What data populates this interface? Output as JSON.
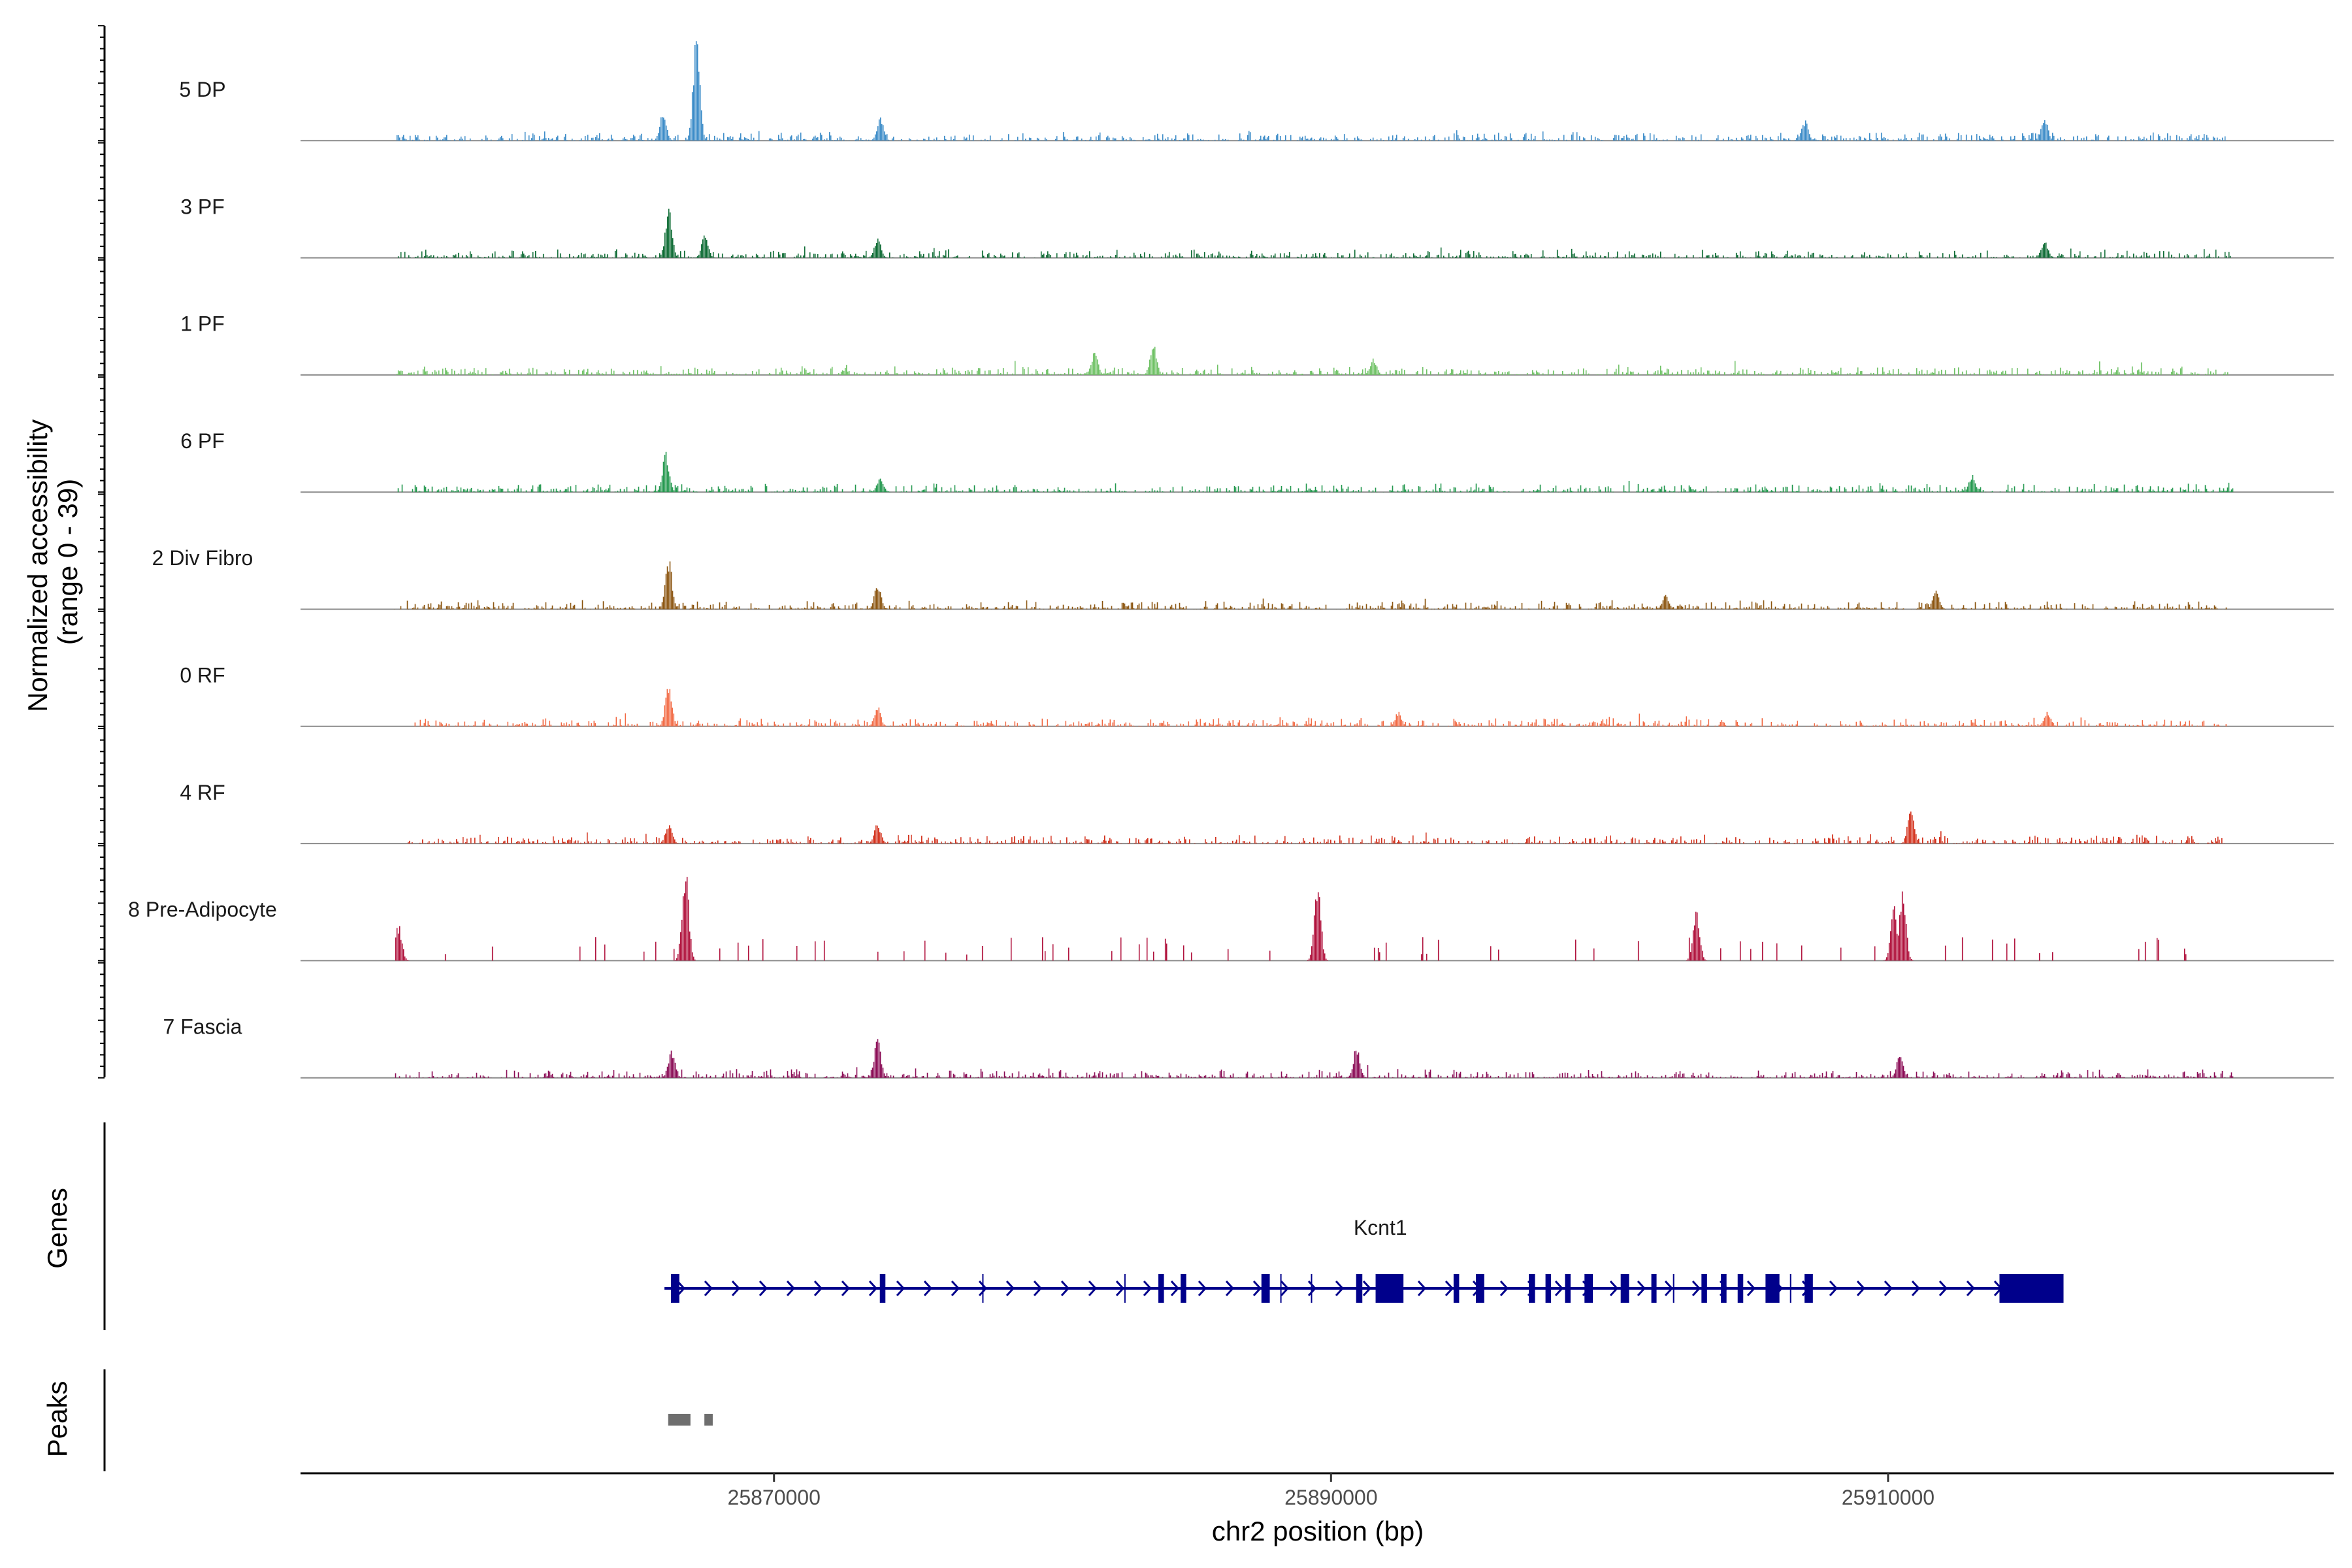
{
  "chart_data": {
    "type": "coverage",
    "y_axis_label_line1": "Normalized accessibility",
    "y_axis_label_line2": "(range 0 - 39)",
    "y_range": [
      0,
      39
    ],
    "x_axis_label": "chr2 position (bp)",
    "x_range": [
      25853000,
      25926000
    ],
    "x_ticks": [
      25870000,
      25890000,
      25910000
    ],
    "x_tick_labels": [
      "25870000",
      "25890000",
      "25910000"
    ],
    "tracks": [
      {
        "name": "5 DP",
        "color": "#3c8cc8",
        "start": 25856400,
        "end": 25922100,
        "peaks": [
          [
            25866000,
            10
          ],
          [
            25867200,
            38
          ],
          [
            25873800,
            8
          ],
          [
            25907000,
            7
          ],
          [
            25915600,
            8
          ]
        ]
      },
      {
        "name": "3 PF",
        "color": "#0b6a32",
        "start": 25856400,
        "end": 25922300,
        "peaks": [
          [
            25866200,
            18
          ],
          [
            25867500,
            8
          ],
          [
            25873700,
            7
          ],
          [
            25915600,
            6
          ]
        ]
      },
      {
        "name": "1 PF",
        "color": "#6ec164",
        "start": 25856400,
        "end": 25922300,
        "peaks": [
          [
            25881500,
            8
          ],
          [
            25883600,
            11
          ],
          [
            25891500,
            6
          ]
        ]
      },
      {
        "name": "6 PF",
        "color": "#23984e",
        "start": 25856300,
        "end": 25922400,
        "peaks": [
          [
            25866100,
            14
          ],
          [
            25873800,
            5
          ],
          [
            25913000,
            6
          ]
        ]
      },
      {
        "name": "2 Div Fibro",
        "color": "#8b5510",
        "start": 25856300,
        "end": 25922200,
        "peaks": [
          [
            25866200,
            18
          ],
          [
            25873700,
            9
          ],
          [
            25902000,
            5
          ],
          [
            25911700,
            7
          ]
        ]
      },
      {
        "name": "0 RF",
        "color": "#f26b45",
        "start": 25857000,
        "end": 25922200,
        "peaks": [
          [
            25866200,
            16
          ],
          [
            25873700,
            7
          ],
          [
            25892400,
            5
          ],
          [
            25915700,
            5
          ]
        ]
      },
      {
        "name": "4 RF",
        "color": "#d3311c",
        "start": 25856800,
        "end": 25922100,
        "peaks": [
          [
            25866200,
            7
          ],
          [
            25873700,
            7
          ],
          [
            25910800,
            13
          ]
        ]
      },
      {
        "name": "8 Pre-Adipocyte",
        "color": "#b0123c",
        "start": 25856400,
        "end": 25922200,
        "peaks": [
          [
            25866800,
            33
          ],
          [
            25889500,
            27
          ],
          [
            25903100,
            19
          ],
          [
            25910500,
            26
          ],
          [
            25910200,
            19
          ],
          [
            25856500,
            13
          ]
        ]
      },
      {
        "name": "7 Fascia",
        "color": "#8a0b55",
        "start": 25856300,
        "end": 25922400,
        "peaks": [
          [
            25866300,
            10
          ],
          [
            25873700,
            14
          ],
          [
            25890900,
            11
          ],
          [
            25910400,
            8
          ]
        ]
      }
    ],
    "genes_label": "Genes",
    "gene": {
      "name": "Kcnt1",
      "start": 25866300,
      "end": 25916300,
      "strand": "+",
      "color": "#00008b",
      "exons": [
        [
          25866300,
          25866600
        ],
        [
          25873800,
          25874000
        ],
        [
          25883800,
          25884000
        ],
        [
          25884600,
          25884800
        ],
        [
          25887500,
          25887800
        ],
        [
          25890900,
          25891000
        ],
        [
          25891600,
          25892600
        ],
        [
          25894400,
          25894600
        ],
        [
          25895200,
          25895500
        ],
        [
          25897100,
          25897200
        ],
        [
          25897700,
          25897900
        ],
        [
          25898400,
          25898600
        ],
        [
          25899100,
          25899400
        ],
        [
          25900400,
          25900700
        ],
        [
          25901500,
          25901600
        ],
        [
          25903300,
          25903500
        ],
        [
          25904000,
          25904200
        ],
        [
          25904600,
          25904800
        ],
        [
          25905600,
          25906100
        ],
        [
          25907000,
          25907300
        ],
        [
          25914000,
          25916300
        ]
      ],
      "introns": [
        [
          25877500
        ],
        [
          25882600
        ],
        [
          25888200
        ],
        [
          25889300
        ],
        [
          25891100
        ],
        [
          25897300
        ],
        [
          25906500
        ],
        [
          25902300
        ]
      ]
    },
    "peaks_label": "Peaks",
    "peak_regions": [
      [
        25866200,
        25867000
      ],
      [
        25867500,
        25867800
      ]
    ],
    "peak_color": "#6e6e6e"
  }
}
